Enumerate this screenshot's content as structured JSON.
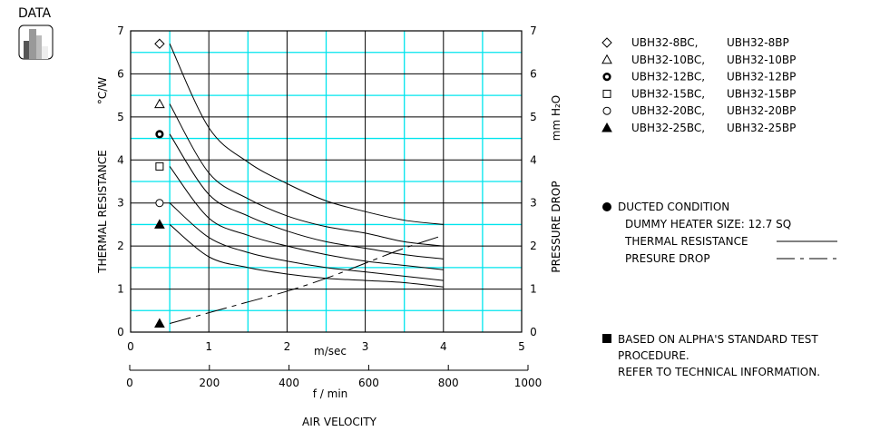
{
  "badge": {
    "label": "DATA",
    "icon": "bar-chart-icon"
  },
  "chart_data": {
    "type": "line",
    "xlabel": "AIR VELOCITY",
    "x_unit_primary": "m/sec",
    "x_unit_secondary": "f / min",
    "x_ticks": [
      "0",
      "1",
      "2",
      "3",
      "4",
      "5"
    ],
    "x2_ticks": [
      "0",
      "200",
      "400",
      "600",
      "800",
      "1000"
    ],
    "xlim": [
      0,
      5
    ],
    "x2lim": [
      0,
      1000
    ],
    "ylabel_left": "THERMAL RESISTANCE",
    "ylabel_left_unit": "°C/W",
    "ylabel_right": "PRESSURE DROP",
    "ylabel_right_unit": "mm H₂O",
    "y_ticks": [
      "0",
      "1",
      "2",
      "3",
      "4",
      "5",
      "6",
      "7"
    ],
    "ylim": [
      0,
      7
    ],
    "grid": {
      "major": true,
      "minor": true,
      "major_color": "#000000",
      "minor_color": "#00e5ee"
    },
    "legend_placement": "right",
    "x": [
      0.5,
      1,
      1.5,
      2,
      2.5,
      3,
      3.5,
      4
    ],
    "series": [
      {
        "name": "UBH32-8BC,",
        "name2": "UBH32-8BP",
        "marker": "diamond-open",
        "values": [
          6.7,
          4.75,
          3.95,
          3.45,
          3.05,
          2.8,
          2.6,
          2.5
        ]
      },
      {
        "name": "UBH32-10BC,",
        "name2": "UBH32-10BP",
        "marker": "triangle-open",
        "values": [
          5.3,
          3.7,
          3.1,
          2.7,
          2.45,
          2.3,
          2.1,
          2.0
        ]
      },
      {
        "name": "UBH32-12BC,",
        "name2": "UBH32-12BP",
        "marker": "circle-bold",
        "values": [
          4.6,
          3.2,
          2.7,
          2.35,
          2.1,
          1.95,
          1.8,
          1.7
        ]
      },
      {
        "name": "UBH32-15BC,",
        "name2": "UBH32-15BP",
        "marker": "square-open",
        "values": [
          3.85,
          2.65,
          2.25,
          2.0,
          1.8,
          1.65,
          1.55,
          1.45
        ]
      },
      {
        "name": "UBH32-20BC,",
        "name2": "UBH32-20BP",
        "marker": "circle-open",
        "values": [
          3.0,
          2.2,
          1.85,
          1.65,
          1.5,
          1.4,
          1.3,
          1.2
        ]
      },
      {
        "name": "UBH32-25BC,",
        "name2": "UBH32-25BP",
        "marker": "triangle-filled",
        "values": [
          2.5,
          1.75,
          1.5,
          1.35,
          1.25,
          1.2,
          1.15,
          1.05
        ]
      }
    ],
    "pressure_drop": {
      "marker": "triangle-filled",
      "values": [
        0.2,
        0.45,
        0.7,
        0.95,
        1.25,
        1.6,
        1.95,
        2.25
      ]
    }
  },
  "notes": {
    "condition": "DUCTED CONDITION",
    "heater": "DUMMY HEATER SIZE: 12.7 SQ",
    "thermal_label": "THERMAL RESISTANCE",
    "pressure_label": "PRESURE DROP",
    "standard_1": "BASED ON ALPHA'S STANDARD TEST",
    "standard_2": "PROCEDURE.",
    "standard_3": "REFER TO TECHNICAL INFORMATION."
  }
}
